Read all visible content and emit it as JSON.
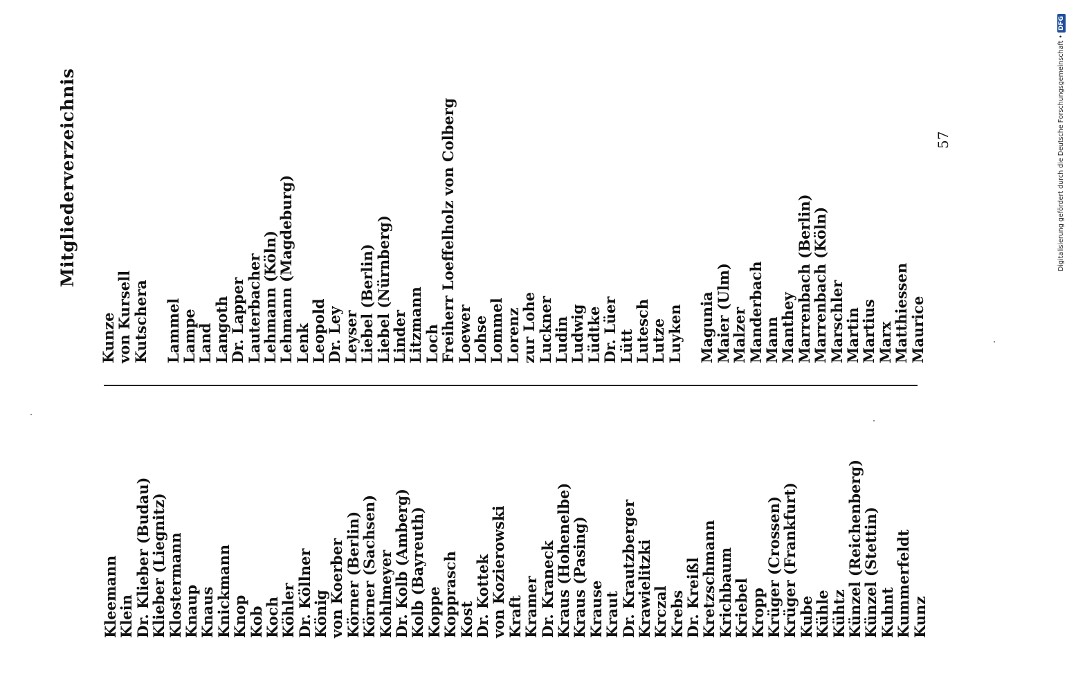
{
  "heading": "Mitgliederverzeichnis",
  "page_number": "57",
  "side_note": {
    "text": "Digitalisierung gefördert durch die Deutsche Forschungsgemeinschaft •",
    "badge": "DFG"
  },
  "column_a": [
    "Kleemann",
    "Klein",
    "Dr. Klieber (Budau)",
    "Klieber (Liegnitz)",
    "Klostermann",
    "Knaup",
    "Knaus",
    "Knickmann",
    "Knop",
    "Kob",
    "Koch",
    "Köhler",
    "Dr. Köllner",
    "König",
    "von Koerber",
    "Körner (Berlin)",
    "Körner (Sachsen)",
    "Kohlmeyer",
    "Dr. Kolb (Amberg)",
    "Kolb (Bayreuth)",
    "Koppe",
    "Kopprasch",
    "Kost",
    "Dr. Kottek",
    "von Kozierowski",
    "Kraft",
    "Kramer",
    "Dr. Kraneck",
    "Kraus (Hohenelbe)",
    "Kraus (Pasing)",
    "Krause",
    "Kraut",
    "Dr. Krautzberger",
    "Krawielitzki",
    "Krczal",
    "Krebs",
    "Dr. Kreißl",
    "Kretzschmann",
    "Krichbaum",
    "Kriebel",
    "Kropp",
    "Krüger (Crossen)",
    "Krüger (Frankfurt)",
    "Kube",
    "Kühle",
    "Kühtz",
    "Künzel (Reichenberg)",
    "Künzel (Stettin)",
    "Kuhnt",
    "Kummerfeldt",
    "Kunz"
  ],
  "column_b": [
    "Kunze",
    "von Kursell",
    "Kutschera",
    "",
    "Lammel",
    "Lampe",
    "Land",
    "Langoth",
    "Dr. Lapper",
    "Lauterbacher",
    "Lehmann (Köln)",
    "Lehmann (Magdeburg)",
    "Lenk",
    "Leopold",
    "Dr. Ley",
    "Leyser",
    "Liebel (Berlin)",
    "Liebel (Nürnberg)",
    "Linder",
    "Litzmann",
    "Loch",
    "Freiherr Loeffelholz von Colberg",
    "Loewer",
    "Lohse",
    "Lommel",
    "Lorenz",
    "zur Lohe",
    "Luckner",
    "Ludin",
    "Ludwig",
    "Lüdtke",
    "Dr. Lüer",
    "Lütt",
    "Lutesch",
    "Lutze",
    "Luyken",
    "",
    "Magunia",
    "Maier (Ulm)",
    "Malzer",
    "Manderbach",
    "Mann",
    "Manthey",
    "Marrenbach (Berlin)",
    "Marrenbach (Köln)",
    "Marschler",
    "Martin",
    "Martius",
    "Marx",
    "Matthiessen",
    "Maurice"
  ]
}
